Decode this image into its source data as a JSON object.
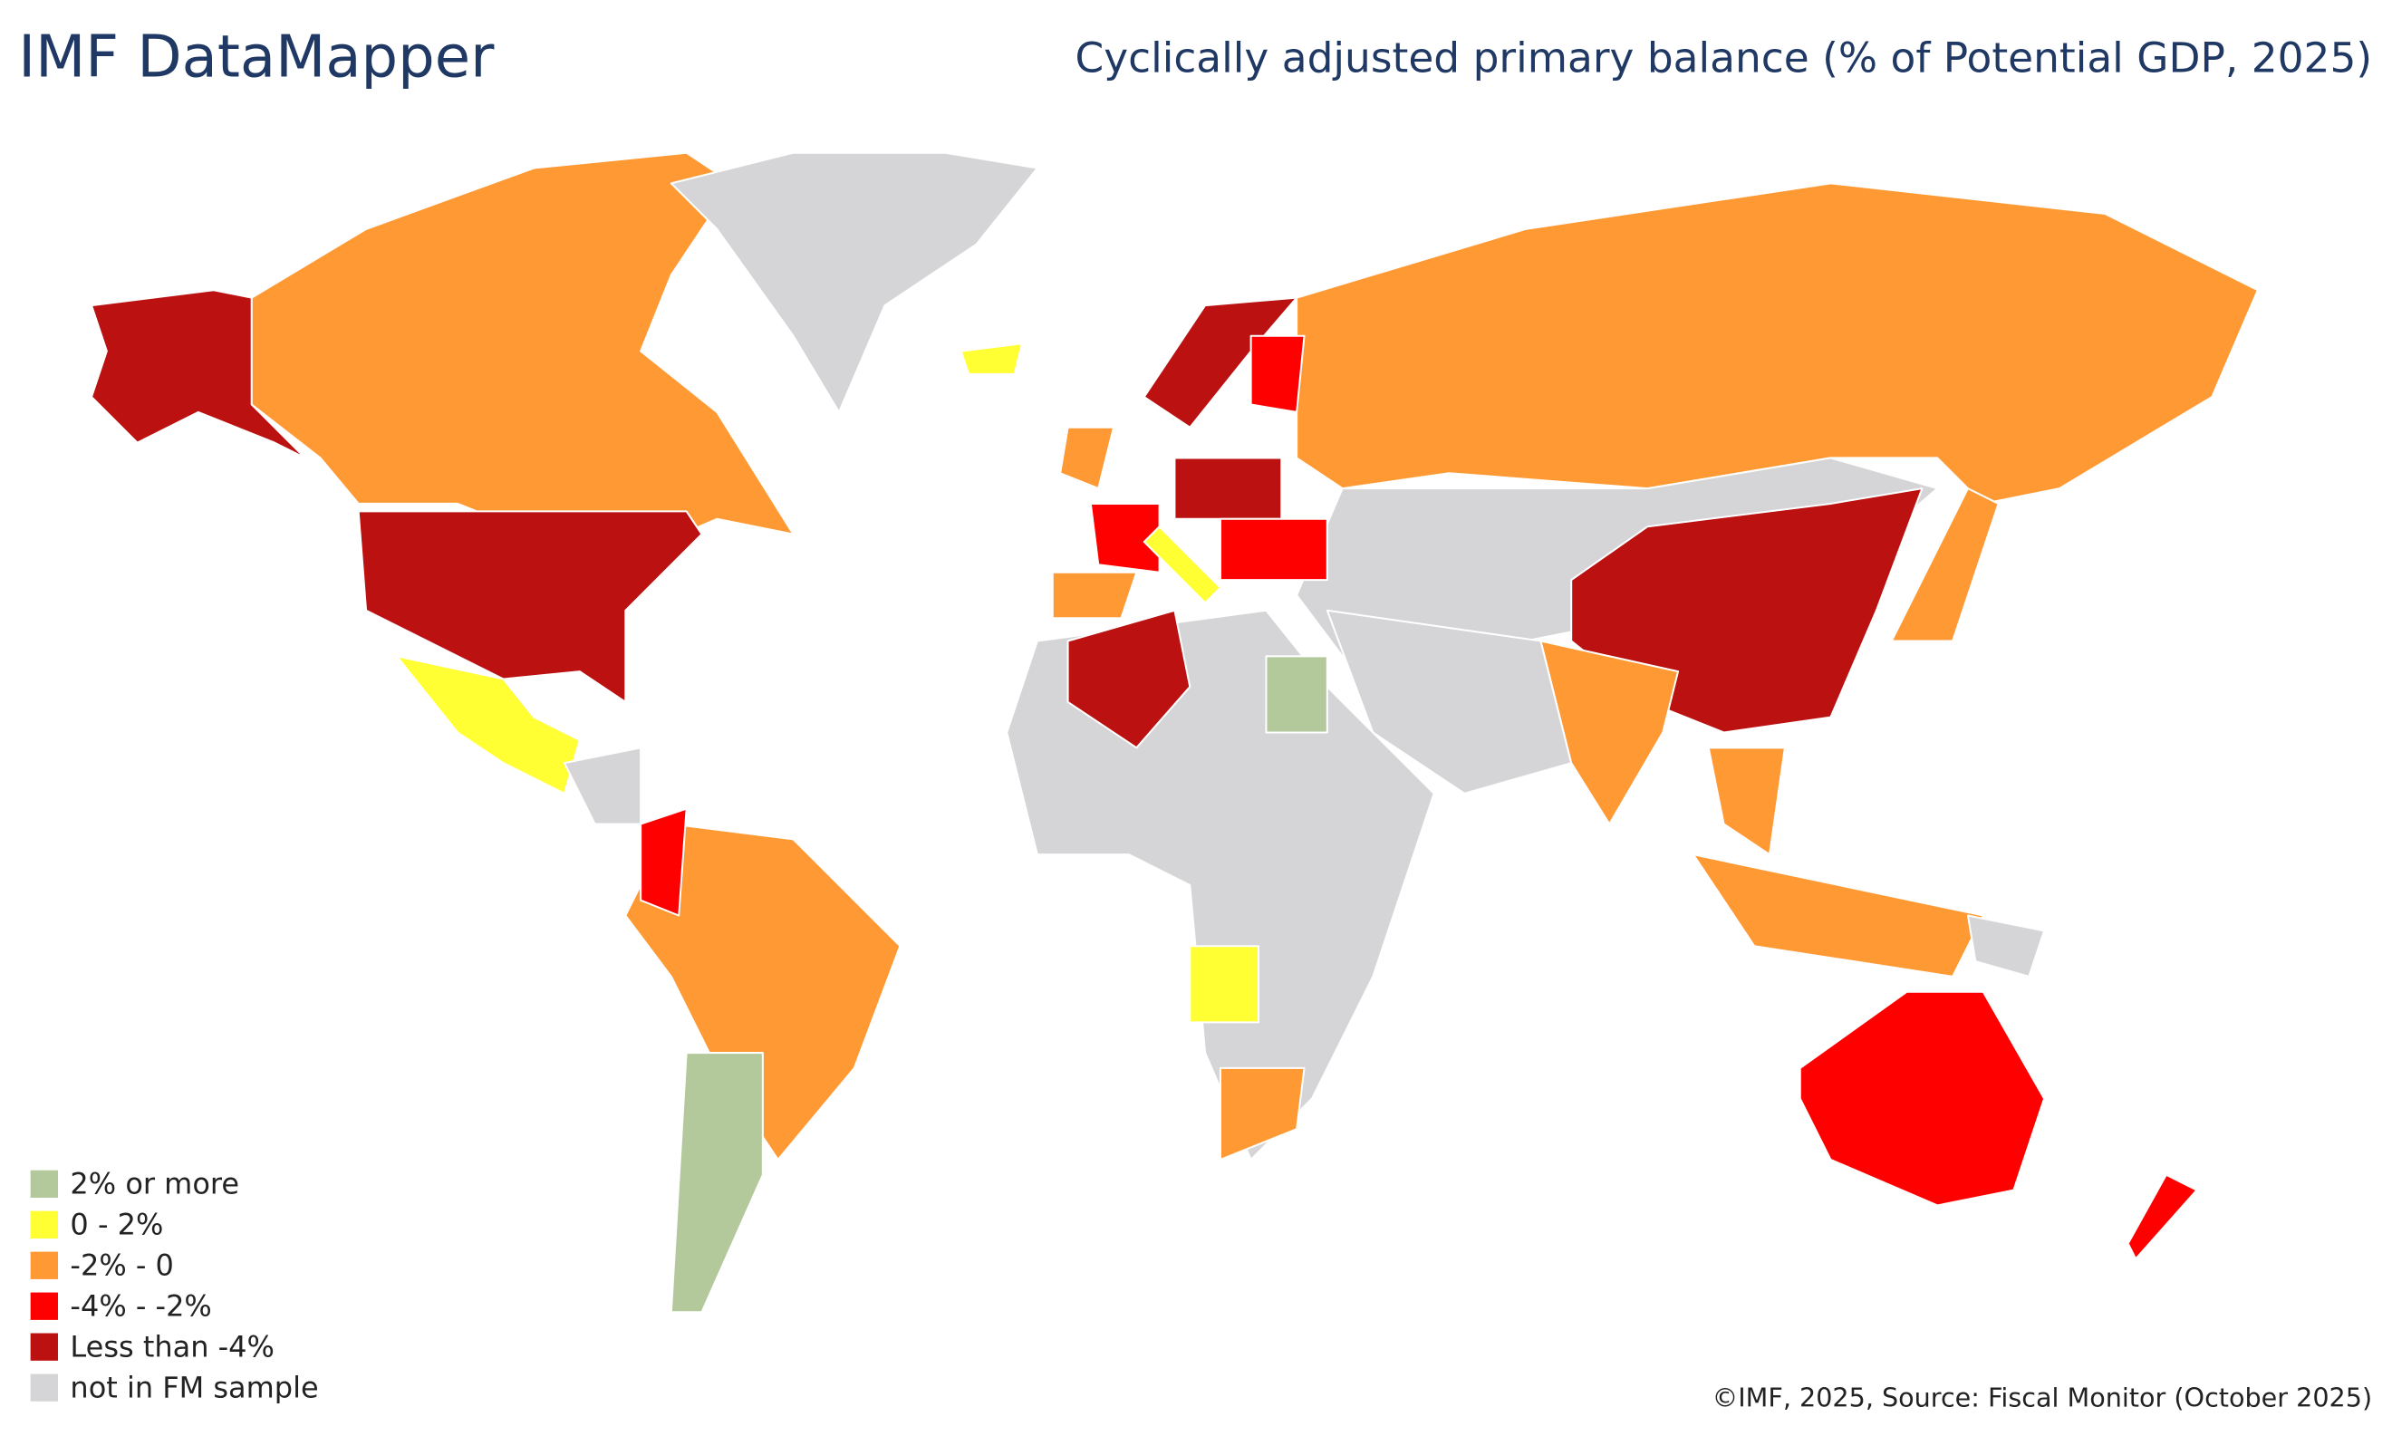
{
  "header": {
    "title": "IMF DataMapper",
    "subtitle": "Cyclically adjusted primary balance (% of Potential GDP, 2025)"
  },
  "legend": {
    "items": [
      {
        "label": "2% or more",
        "color": "#b3c99c"
      },
      {
        "label": "0 - 2%",
        "color": "#ffff33"
      },
      {
        "label": "-2% - 0",
        "color": "#ff9933"
      },
      {
        "label": "-4% - -2%",
        "color": "#ff0000"
      },
      {
        "label": "Less than -4%",
        "color": "#bb1111"
      },
      {
        "label": "not in FM sample",
        "color": "#d5d5d8"
      }
    ]
  },
  "footer": {
    "source": "©IMF, 2025, Source: Fiscal Monitor (October 2025)"
  }
}
